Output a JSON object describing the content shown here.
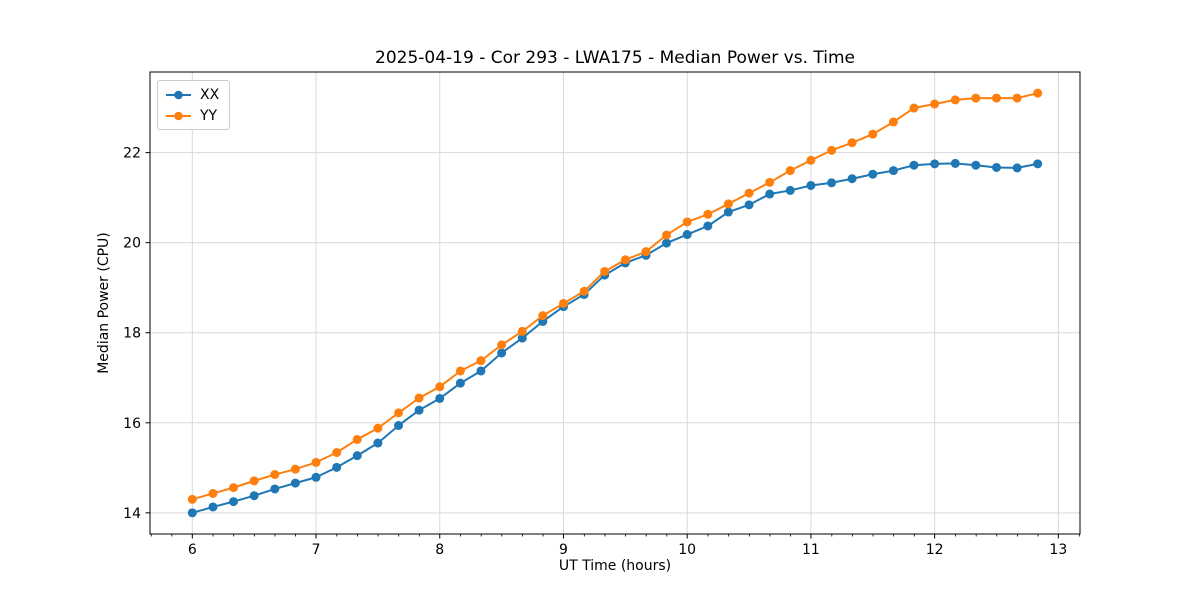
{
  "figure": {
    "background": "#ffffff"
  },
  "chart_data": {
    "type": "line",
    "title": "2025-04-19 - Cor 293 - LWA175 - Median Power vs. Time",
    "xlabel": "UT Time (hours)",
    "ylabel": "Median Power (CPU)",
    "xlim": [
      5.658,
      13.175
    ],
    "ylim": [
      13.53,
      23.79
    ],
    "xticks": [
      6,
      7,
      8,
      9,
      10,
      11,
      12,
      13
    ],
    "yticks": [
      14,
      16,
      18,
      20,
      22
    ],
    "minor_x_step": 0.1667,
    "grid": true,
    "legend_position": "upper-left",
    "marker": "circle",
    "x": [
      6.0,
      6.167,
      6.333,
      6.5,
      6.667,
      6.833,
      7.0,
      7.167,
      7.333,
      7.5,
      7.667,
      7.833,
      8.0,
      8.167,
      8.333,
      8.5,
      8.667,
      8.833,
      9.0,
      9.167,
      9.333,
      9.5,
      9.667,
      9.833,
      10.0,
      10.167,
      10.333,
      10.5,
      10.667,
      10.833,
      11.0,
      11.167,
      11.333,
      11.5,
      11.667,
      11.833,
      12.0,
      12.167,
      12.333,
      12.5,
      12.667,
      12.833
    ],
    "series": [
      {
        "name": "XX",
        "color": "#1f77b4",
        "values": [
          14.0,
          14.13,
          14.25,
          14.38,
          14.53,
          14.66,
          14.79,
          15.01,
          15.27,
          15.55,
          15.94,
          16.28,
          16.54,
          16.88,
          17.15,
          17.55,
          17.88,
          18.25,
          18.58,
          18.85,
          19.28,
          19.55,
          19.72,
          19.99,
          20.18,
          20.37,
          20.68,
          20.84,
          21.08,
          21.16,
          21.27,
          21.33,
          21.42,
          21.52,
          21.6,
          21.72,
          21.75,
          21.76,
          21.72,
          21.67,
          21.66,
          21.75
        ]
      },
      {
        "name": "YY",
        "color": "#ff7f0e",
        "values": [
          14.3,
          14.43,
          14.56,
          14.71,
          14.85,
          14.97,
          15.12,
          15.34,
          15.63,
          15.88,
          16.22,
          16.55,
          16.8,
          17.15,
          17.38,
          17.73,
          18.03,
          18.38,
          18.65,
          18.92,
          19.36,
          19.62,
          19.8,
          20.17,
          20.46,
          20.63,
          20.86,
          21.1,
          21.34,
          21.6,
          21.83,
          22.05,
          22.22,
          22.41,
          22.68,
          22.99,
          23.08,
          23.17,
          23.21,
          23.21,
          23.21,
          23.32
        ]
      }
    ]
  },
  "colors": {
    "grid": "#d9d9d9",
    "spine": "#000000",
    "text": "#000000"
  }
}
